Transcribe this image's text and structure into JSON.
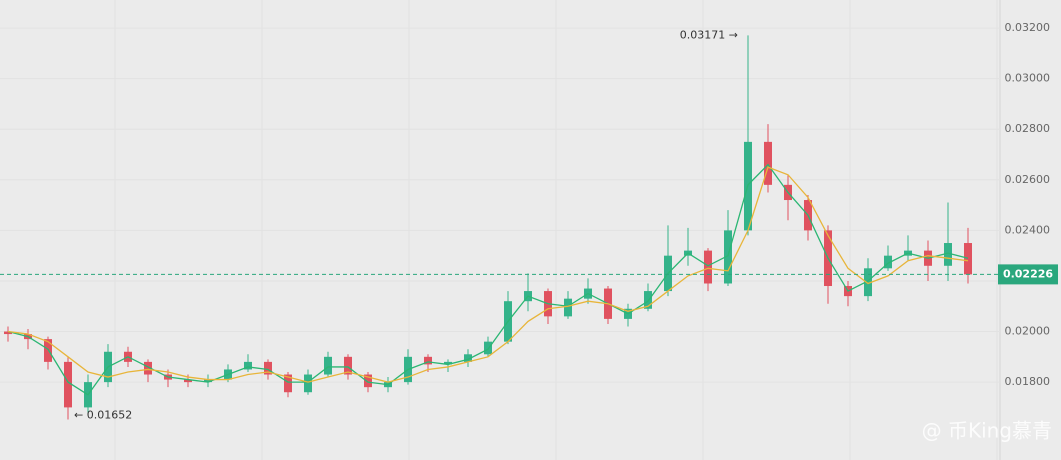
{
  "chart_data": {
    "type": "candlestick",
    "open": [
      0.02,
      0.0199,
      0.0197,
      0.0188,
      0.017,
      0.018,
      0.0192,
      0.0188,
      0.0183,
      0.0181,
      0.018,
      0.0181,
      0.0185,
      0.0188,
      0.0183,
      0.0176,
      0.0183,
      0.019,
      0.0183,
      0.0178,
      0.018,
      0.019,
      0.0187,
      0.0188,
      0.0191,
      0.0196,
      0.0212,
      0.0216,
      0.0206,
      0.0213,
      0.0217,
      0.0205,
      0.0209,
      0.0216,
      0.023,
      0.0232,
      0.0219,
      0.024,
      0.0275,
      0.0258,
      0.0252,
      0.024,
      0.0218,
      0.0214,
      0.0225,
      0.023,
      0.0232,
      0.0226,
      0.0235
    ],
    "high": [
      0.0202,
      0.0201,
      0.0198,
      0.019,
      0.0183,
      0.0195,
      0.0194,
      0.0189,
      0.0185,
      0.0183,
      0.0183,
      0.0187,
      0.0191,
      0.0189,
      0.0184,
      0.0185,
      0.0192,
      0.0191,
      0.0184,
      0.0182,
      0.0193,
      0.0191,
      0.0189,
      0.0193,
      0.0198,
      0.0216,
      0.0223,
      0.0217,
      0.0216,
      0.0221,
      0.0218,
      0.0211,
      0.0219,
      0.0242,
      0.0241,
      0.0233,
      0.0248,
      0.03171,
      0.0282,
      0.0262,
      0.0254,
      0.0242,
      0.022,
      0.0229,
      0.0234,
      0.0238,
      0.0236,
      0.0251,
      0.0241
    ],
    "low": [
      0.0196,
      0.0193,
      0.0185,
      0.01652,
      0.0168,
      0.0178,
      0.0186,
      0.018,
      0.0178,
      0.0178,
      0.0178,
      0.018,
      0.0184,
      0.0181,
      0.0174,
      0.0175,
      0.0182,
      0.0181,
      0.0176,
      0.0176,
      0.0179,
      0.0184,
      0.0184,
      0.0186,
      0.019,
      0.0195,
      0.0208,
      0.0203,
      0.0205,
      0.0211,
      0.0203,
      0.0202,
      0.0208,
      0.0214,
      0.0226,
      0.0216,
      0.0218,
      0.0238,
      0.0255,
      0.0244,
      0.0236,
      0.0211,
      0.021,
      0.0212,
      0.0224,
      0.0228,
      0.022,
      0.022,
      0.0219
    ],
    "close": [
      0.0199,
      0.0197,
      0.0188,
      0.017,
      0.018,
      0.0192,
      0.0188,
      0.0183,
      0.0181,
      0.018,
      0.0181,
      0.0185,
      0.0188,
      0.0183,
      0.0176,
      0.0183,
      0.019,
      0.0183,
      0.0178,
      0.018,
      0.019,
      0.0187,
      0.0188,
      0.0191,
      0.0196,
      0.0212,
      0.0216,
      0.0206,
      0.0213,
      0.0217,
      0.0205,
      0.0209,
      0.0216,
      0.023,
      0.0232,
      0.0219,
      0.024,
      0.0275,
      0.0258,
      0.0252,
      0.024,
      0.0218,
      0.0214,
      0.0225,
      0.023,
      0.0232,
      0.0226,
      0.0235,
      0.02226
    ],
    "up_color": "#34b38a",
    "down_color": "#e0525f",
    "overlays": [
      {
        "color": "#2bb673",
        "values": [
          0.02,
          0.0198,
          0.0193,
          0.018,
          0.0175,
          0.0186,
          0.019,
          0.0186,
          0.0182,
          0.0181,
          0.018,
          0.0183,
          0.0186,
          0.0185,
          0.018,
          0.018,
          0.0186,
          0.0186,
          0.018,
          0.0179,
          0.0185,
          0.0188,
          0.0187,
          0.0189,
          0.0193,
          0.0204,
          0.0214,
          0.0211,
          0.021,
          0.0215,
          0.0211,
          0.0207,
          0.0212,
          0.0223,
          0.0231,
          0.0226,
          0.023,
          0.0258,
          0.0266,
          0.0255,
          0.0246,
          0.0229,
          0.0216,
          0.022,
          0.0227,
          0.0231,
          0.0229,
          0.0231,
          0.0229
        ]
      },
      {
        "color": "#e8b53a",
        "values": [
          0.02,
          0.0199,
          0.0196,
          0.019,
          0.0184,
          0.0182,
          0.0184,
          0.0185,
          0.0184,
          0.0182,
          0.0181,
          0.0181,
          0.0183,
          0.0184,
          0.0182,
          0.018,
          0.0182,
          0.0184,
          0.0182,
          0.018,
          0.0182,
          0.0185,
          0.0186,
          0.0188,
          0.019,
          0.0196,
          0.0204,
          0.0209,
          0.021,
          0.0212,
          0.0211,
          0.0208,
          0.021,
          0.0216,
          0.0222,
          0.0225,
          0.0224,
          0.024,
          0.0265,
          0.0262,
          0.0253,
          0.0238,
          0.0225,
          0.0219,
          0.0222,
          0.0228,
          0.023,
          0.0229,
          0.0228
        ]
      }
    ],
    "ylim": [
      0.01492,
      0.03311
    ],
    "yticks": [
      {
        "value": 0.018,
        "label": "0.01800"
      },
      {
        "value": 0.02,
        "label": "0.02000"
      },
      {
        "value": 0.022,
        "label": "0.02200"
      },
      {
        "value": 0.024,
        "label": "0.02400"
      },
      {
        "value": 0.026,
        "label": "0.02600"
      },
      {
        "value": 0.028,
        "label": "0.02800"
      },
      {
        "value": 0.03,
        "label": "0.03000"
      },
      {
        "value": 0.032,
        "label": "0.03200"
      }
    ],
    "last_price": 0.02226,
    "last_price_color": "#2aa77d",
    "annotations": [
      "0.03171 →",
      "← 0.01652"
    ],
    "grid": true,
    "watermark": "@ 币King慕青"
  }
}
